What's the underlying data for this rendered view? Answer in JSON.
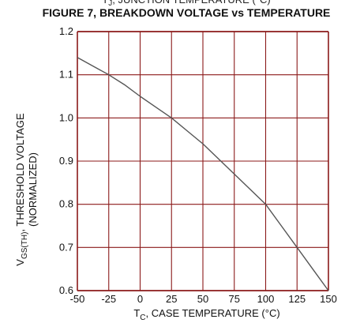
{
  "chart_data": {
    "type": "line",
    "clipped_header": "T_J, JUNCTION TEMPERATURE (°C)",
    "title": "FIGURE 7, BREAKDOWN VOLTAGE vs TEMPERATURE",
    "xlabel_main": "T",
    "xlabel_sub": "C",
    "xlabel_rest": ", CASE TEMPERATURE (°C)",
    "ylabel_main": "V",
    "ylabel_sub": "GS(TH)",
    "ylabel_rest": ", THRESHOLD VOLTAGE",
    "ylabel_line2": "(NORMALIZED)",
    "xlim": [
      -50,
      150
    ],
    "ylim": [
      0.6,
      1.2
    ],
    "xticks": [
      -50,
      -25,
      0,
      25,
      50,
      75,
      100,
      125,
      150
    ],
    "yticks": [
      0.6,
      0.7,
      0.8,
      0.9,
      1.0,
      1.1,
      1.2
    ],
    "xtick_labels": [
      "-50",
      "-25",
      "0",
      "25",
      "50",
      "75",
      "100",
      "125",
      "150"
    ],
    "ytick_labels": [
      "0.6",
      "0.7",
      "0.8",
      "0.9",
      "1.0",
      "1.1",
      "1.2"
    ],
    "grid": true,
    "colors": {
      "grid": "#8b1a1a",
      "line": "#555555",
      "text": "#111111"
    },
    "series": [
      {
        "x": [
          -50,
          -37.5,
          -25,
          -12.5,
          0,
          12.5,
          25,
          37.5,
          50,
          62.5,
          75,
          87.5,
          100,
          112.5,
          125,
          137.5,
          150
        ],
        "y": [
          1.14,
          1.12,
          1.1,
          1.077,
          1.05,
          1.025,
          1.0,
          0.97,
          0.94,
          0.905,
          0.87,
          0.835,
          0.8,
          0.75,
          0.7,
          0.65,
          0.6
        ]
      }
    ]
  }
}
